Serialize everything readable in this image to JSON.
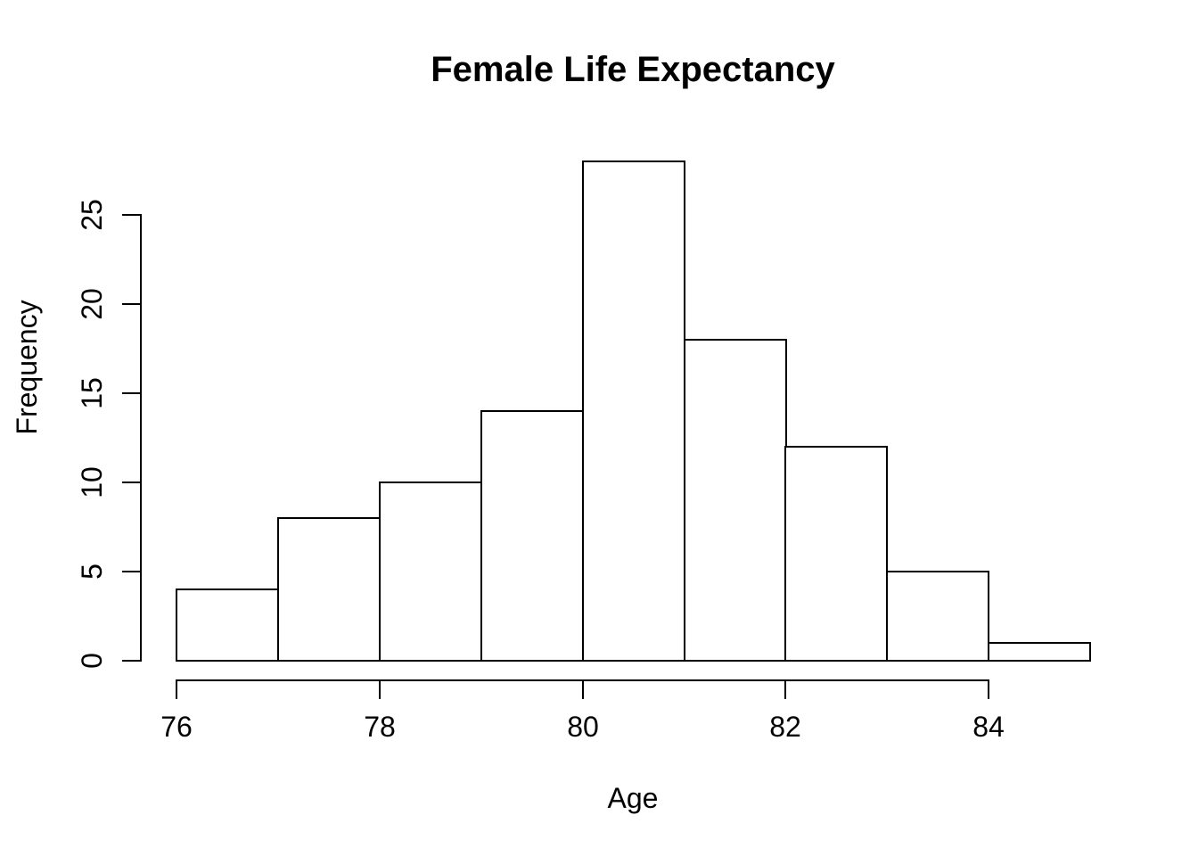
{
  "figure": {
    "background": "#ffffff",
    "foreground": "#000000",
    "bar_fill": "#ffffff",
    "bar_stroke": "#000000"
  },
  "chart_data": {
    "type": "bar",
    "subtype": "histogram",
    "title": "Female Life Expectancy",
    "xlabel": "Age",
    "ylabel": "Frequency",
    "bin_edges": [
      76,
      77,
      78,
      79,
      80,
      81,
      82,
      83,
      84,
      85
    ],
    "counts": [
      4,
      8,
      10,
      14,
      28,
      18,
      12,
      5,
      1
    ],
    "x_ticks": [
      76,
      78,
      80,
      82,
      84
    ],
    "y_ticks": [
      0,
      5,
      10,
      15,
      20,
      25
    ],
    "xlim": [
      76,
      85
    ],
    "ylim": [
      0,
      25
    ],
    "grid": false,
    "legend": null
  }
}
